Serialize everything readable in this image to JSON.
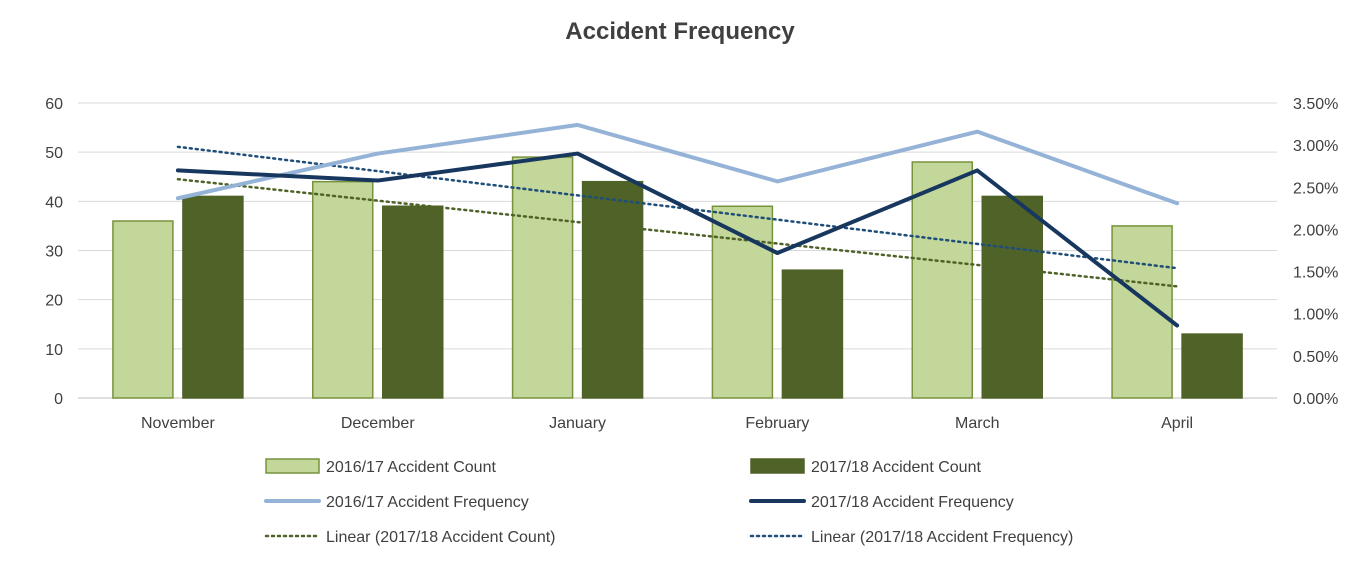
{
  "chart_data": {
    "type": "bar",
    "title": "Accident Frequency",
    "categories": [
      "November",
      "December",
      "January",
      "February",
      "March",
      "April"
    ],
    "left_axis": {
      "min": 0,
      "max": 60,
      "step": 10,
      "ticks": [
        "0",
        "10",
        "20",
        "30",
        "40",
        "50",
        "60"
      ]
    },
    "right_axis": {
      "min": 0,
      "max": 0.035,
      "step": 0.005,
      "ticks": [
        "0.00%",
        "0.50%",
        "1.00%",
        "1.50%",
        "2.00%",
        "2.50%",
        "3.00%",
        "3.50%"
      ]
    },
    "bar_series": [
      {
        "name": "2016/17 Accident Count",
        "values": [
          36,
          44,
          49,
          39,
          48,
          35
        ],
        "color": "#c4d79b",
        "stroke": "#76933c"
      },
      {
        "name": "2017/18 Accident Count",
        "values": [
          41,
          39,
          44,
          26,
          41,
          13
        ],
        "color": "#4f6228",
        "stroke": "#4f6228"
      }
    ],
    "line_series": [
      {
        "name": "2016/17 Accident Frequency",
        "values": [
          0.0237,
          0.029,
          0.0324,
          0.0257,
          0.0316,
          0.0231
        ],
        "color": "#95b3d7"
      },
      {
        "name": "2017/18 Accident Frequency",
        "values": [
          0.027,
          0.0258,
          0.029,
          0.0172,
          0.027,
          0.0086
        ],
        "color": "#17375e"
      }
    ],
    "trend_series": [
      {
        "name": "Linear (2017/18 Accident Count)",
        "axis": "left",
        "start": 44.5,
        "end": 22.7,
        "color": "#4f6228"
      },
      {
        "name": "Linear (2017/18 Accident Frequency)",
        "axis": "right",
        "start": 0.0298,
        "end": 0.0154,
        "color": "#1f4e79"
      }
    ],
    "legend": [
      "2016/17 Accident Count",
      "2017/18 Accident Count",
      "2016/17 Accident Frequency",
      "2017/18 Accident Frequency",
      "Linear (2017/18 Accident Count)",
      "Linear (2017/18 Accident Frequency)"
    ],
    "legend_position": "bottom",
    "grid": true
  }
}
